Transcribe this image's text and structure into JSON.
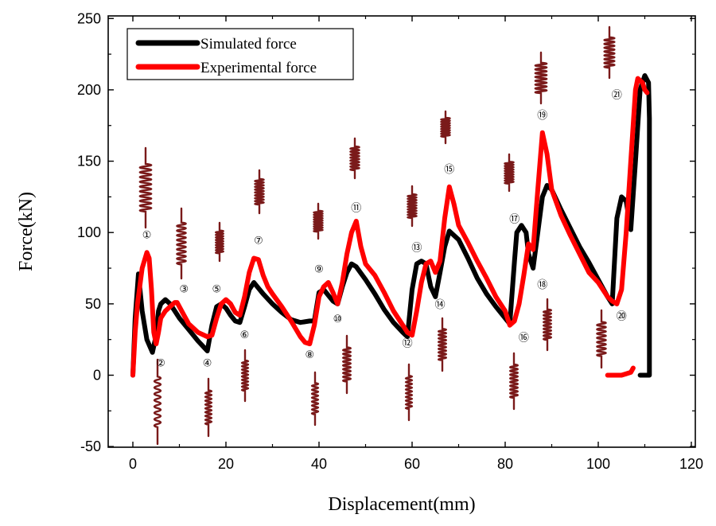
{
  "chart_data": {
    "type": "line",
    "xlabel": "Displacement(mm)",
    "ylabel": "Force(kN)",
    "xlim": [
      0,
      120
    ],
    "ylim": [
      -50,
      250
    ],
    "xticks": [
      0,
      20,
      40,
      60,
      80,
      100,
      120
    ],
    "yticks": [
      -50,
      0,
      50,
      100,
      150,
      200,
      250
    ],
    "grid": false,
    "legend_position": "top-left",
    "series": [
      {
        "name": "Simulated force",
        "color": "#000000",
        "x": [
          0,
          0.5,
          1.2,
          2.0,
          3.0,
          4.2,
          5.0,
          5.5,
          6.0,
          7.0,
          8.0,
          9.0,
          10.0,
          12.0,
          14.0,
          16.0,
          17.0,
          18.0,
          19.0,
          20.0,
          21.0,
          22.0,
          23.0,
          24.0,
          25.0,
          26.0,
          27.0,
          28.0,
          30.0,
          32.0,
          34.0,
          36.0,
          38.0,
          39.0,
          40.0,
          41.0,
          42.0,
          43.0,
          44.0,
          45.0,
          46.0,
          47.0,
          48.0,
          50.0,
          52.0,
          54.0,
          56.0,
          58.0,
          59.0,
          60.0,
          61.0,
          62.0,
          63.0,
          64.0,
          65.0,
          66.0,
          67.0,
          68.0,
          70.0,
          72.0,
          74.0,
          76.0,
          78.0,
          80.0,
          81.0,
          82.0,
          82.5,
          83.5,
          84.5,
          85.0,
          86.0,
          87.0,
          88.0,
          89.0,
          90.0,
          92.0,
          94.0,
          96.0,
          98.0,
          100.0,
          102.0,
          103.0,
          104.0,
          105.0,
          106.0,
          107.0,
          108.0,
          109.0,
          110.0,
          110.8,
          111.0,
          111.0,
          109.0
        ],
        "y": [
          0,
          40,
          71,
          45,
          25,
          16,
          28,
          45,
          50,
          53,
          50,
          45,
          40,
          32,
          24,
          17,
          35,
          48,
          50,
          47,
          42,
          38,
          37,
          48,
          60,
          65,
          61,
          57,
          50,
          44,
          39,
          37,
          38,
          38,
          58,
          60,
          56,
          52,
          50,
          62,
          72,
          78,
          76,
          67,
          57,
          46,
          37,
          30,
          27,
          60,
          78,
          80,
          78,
          62,
          55,
          72,
          90,
          101,
          95,
          82,
          68,
          57,
          48,
          40,
          36,
          80,
          100,
          105,
          100,
          85,
          75,
          100,
          125,
          133,
          130,
          116,
          103,
          90,
          79,
          67,
          55,
          50,
          110,
          125,
          122,
          102,
          150,
          200,
          210,
          205,
          180,
          0,
          0
        ]
      },
      {
        "name": "Experimental force",
        "color": "#ff0000",
        "x": [
          0,
          0.5,
          1.0,
          2.0,
          3.0,
          3.5,
          4.0,
          4.5,
          5.0,
          5.5,
          6.0,
          7.0,
          8.0,
          9.0,
          9.5,
          10.0,
          11.0,
          12.0,
          14.0,
          16.0,
          17.0,
          18.0,
          19.0,
          20.0,
          21.0,
          22.0,
          23.0,
          24.0,
          25.0,
          26.0,
          27.0,
          28.0,
          29.0,
          30.0,
          32.0,
          34.0,
          36.0,
          37.0,
          38.0,
          39.0,
          40.0,
          41.0,
          42.0,
          43.0,
          44.0,
          45.0,
          46.0,
          47.0,
          48.0,
          49.0,
          50.0,
          52.0,
          54.0,
          56.0,
          58.0,
          59.0,
          60.0,
          61.0,
          62.0,
          63.0,
          64.0,
          65.0,
          66.0,
          67.0,
          68.0,
          69.0,
          70.0,
          72.0,
          74.0,
          76.0,
          78.0,
          80.0,
          81.0,
          82.0,
          83.0,
          84.0,
          85.0,
          86.0,
          87.0,
          88.0,
          89.0,
          90.0,
          92.0,
          94.0,
          96.0,
          98.0,
          100.0,
          102.0,
          103.0,
          104.0,
          105.0,
          106.0,
          107.0,
          108.0,
          108.5,
          109.5,
          110.0,
          110.5
        ],
        "y": [
          0,
          30,
          50,
          75,
          86,
          82,
          60,
          30,
          22,
          30,
          40,
          45,
          48,
          51,
          51,
          48,
          42,
          36,
          30,
          27,
          28,
          40,
          50,
          53,
          50,
          44,
          42,
          55,
          72,
          82,
          81,
          70,
          62,
          57,
          48,
          38,
          27,
          23,
          22,
          35,
          55,
          62,
          65,
          58,
          50,
          65,
          85,
          100,
          108,
          90,
          78,
          70,
          58,
          45,
          35,
          30,
          28,
          45,
          65,
          78,
          80,
          72,
          80,
          110,
          132,
          120,
          105,
          93,
          80,
          68,
          55,
          45,
          35,
          38,
          50,
          70,
          92,
          88,
          130,
          170,
          155,
          130,
          112,
          98,
          85,
          72,
          65,
          55,
          52,
          50,
          60,
          100,
          150,
          200,
          208,
          205,
          200,
          198
        ]
      },
      {
        "name": "",
        "color": "#ff0000",
        "x": [
          102,
          103,
          104,
          105,
          106,
          107,
          107.5
        ],
        "y": [
          0,
          0,
          0,
          0,
          1,
          2,
          5
        ]
      }
    ],
    "annotations": [
      {
        "label": "①",
        "x": 3,
        "y": 96
      },
      {
        "label": "②",
        "x": 6,
        "y": 6
      },
      {
        "label": "③",
        "x": 11,
        "y": 58
      },
      {
        "label": "④",
        "x": 16,
        "y": 6
      },
      {
        "label": "⑤",
        "x": 18,
        "y": 58
      },
      {
        "label": "⑥",
        "x": 24,
        "y": 26
      },
      {
        "label": "⑦",
        "x": 27,
        "y": 92
      },
      {
        "label": "⑧",
        "x": 38,
        "y": 12
      },
      {
        "label": "⑨",
        "x": 40,
        "y": 72
      },
      {
        "label": "⑩",
        "x": 44,
        "y": 37
      },
      {
        "label": "⑪",
        "x": 48,
        "y": 115
      },
      {
        "label": "⑫",
        "x": 59,
        "y": 20
      },
      {
        "label": "⑬",
        "x": 61,
        "y": 87
      },
      {
        "label": "⑭",
        "x": 66,
        "y": 47
      },
      {
        "label": "⑮",
        "x": 68,
        "y": 142
      },
      {
        "label": "⑯",
        "x": 84,
        "y": 24
      },
      {
        "label": "⑰",
        "x": 82,
        "y": 107
      },
      {
        "label": "⑱",
        "x": 88,
        "y": 61
      },
      {
        "label": "⑲",
        "x": 88,
        "y": 180
      },
      {
        "label": "⑳",
        "x": 105,
        "y": 39
      },
      {
        "label": "㉑",
        "x": 104,
        "y": 194
      }
    ]
  }
}
